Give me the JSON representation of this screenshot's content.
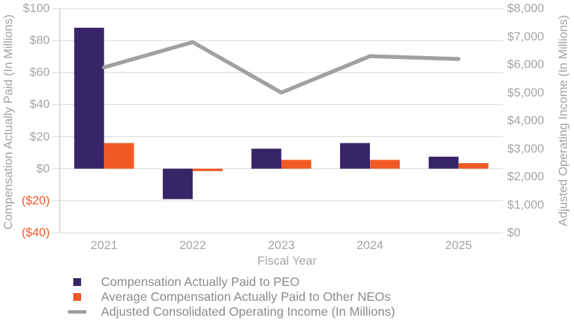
{
  "chart_data": {
    "type": "combo-bar-line",
    "categories": [
      "2021",
      "2022",
      "2023",
      "2024",
      "2025"
    ],
    "series": [
      {
        "key": "peo",
        "name": "Compensation Actually Paid to PEO",
        "type": "bar",
        "axis": "left",
        "color": "#372569",
        "values": [
          88,
          -19,
          12.5,
          16,
          7.5
        ]
      },
      {
        "key": "neo",
        "name": "Average Compensation Actually Paid to Other NEOs",
        "type": "bar",
        "axis": "left",
        "color": "#f15a24",
        "values": [
          16,
          -1.5,
          5.5,
          5.5,
          3.5
        ]
      },
      {
        "key": "aoi",
        "name": "Adjusted Consolidated Operating Income (In Millions)",
        "type": "line",
        "axis": "right",
        "color": "#a1a1a1",
        "values": [
          5900,
          6800,
          5000,
          6300,
          6200
        ]
      }
    ],
    "xlabel": "Fiscal Year",
    "ylabel_left": "Compensation Actually Paid (In Millions)",
    "ylabel_right": "Adjusted Operating Income (In Millions)",
    "left_axis": {
      "min": -40,
      "max": 100,
      "tick_values": [
        100,
        80,
        60,
        40,
        20,
        0,
        -20,
        -40
      ],
      "tick_labels": [
        "$100",
        "$80",
        "$60",
        "$40",
        "$20",
        "$0",
        "($20)",
        "($40)"
      ],
      "negative_tick_color": "#f15a24"
    },
    "right_axis": {
      "min": 0,
      "max": 8000,
      "tick_values": [
        8000,
        7000,
        6000,
        5000,
        4000,
        3000,
        2000,
        1000,
        0
      ],
      "tick_labels": [
        "$8,000",
        "$7,000",
        "$6,000",
        "$5,000",
        "$4,000",
        "$3,000",
        "$2,000",
        "$1,000",
        "$0"
      ]
    },
    "grid": true,
    "gridline_color": "#d8d8d8",
    "axis_line_color": "#cfcfcf",
    "legend_position": "bottom-left"
  }
}
